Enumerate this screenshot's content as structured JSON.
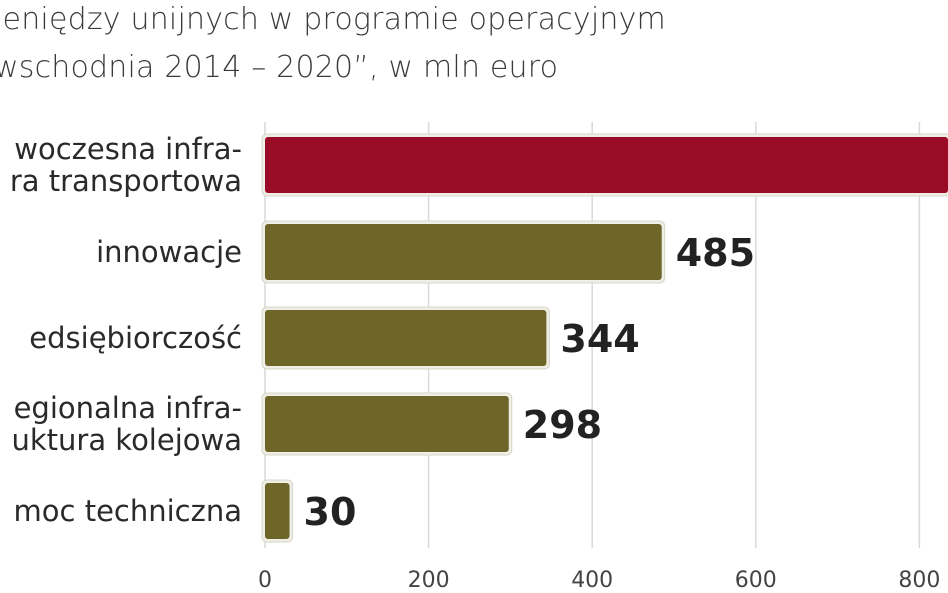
{
  "chart_data": {
    "type": "bar",
    "orientation": "horizontal",
    "title_lines": [
      "ieniędzy unijnych w programie operacyjnym",
      "wschodnia 2014 – 2020”, w mln euro"
    ],
    "categories": [
      [
        "woczesna infra-",
        "ra transportowa"
      ],
      [
        "innowacje"
      ],
      [
        "edsiębiorczość"
      ],
      [
        "egionalna infra-",
        "uktura kolejowa"
      ],
      [
        "moc techniczna"
      ]
    ],
    "values": [
      850,
      485,
      344,
      298,
      30
    ],
    "value_labels": [
      "",
      "485",
      "344",
      "298",
      "30"
    ],
    "colors": [
      "#9a0c26",
      "#6e6628",
      "#6e6628",
      "#6e6628",
      "#6e6628"
    ],
    "xticks": [
      "0",
      "200",
      "400",
      "600",
      "800"
    ],
    "xlim": [
      0,
      850
    ],
    "grid": true
  }
}
